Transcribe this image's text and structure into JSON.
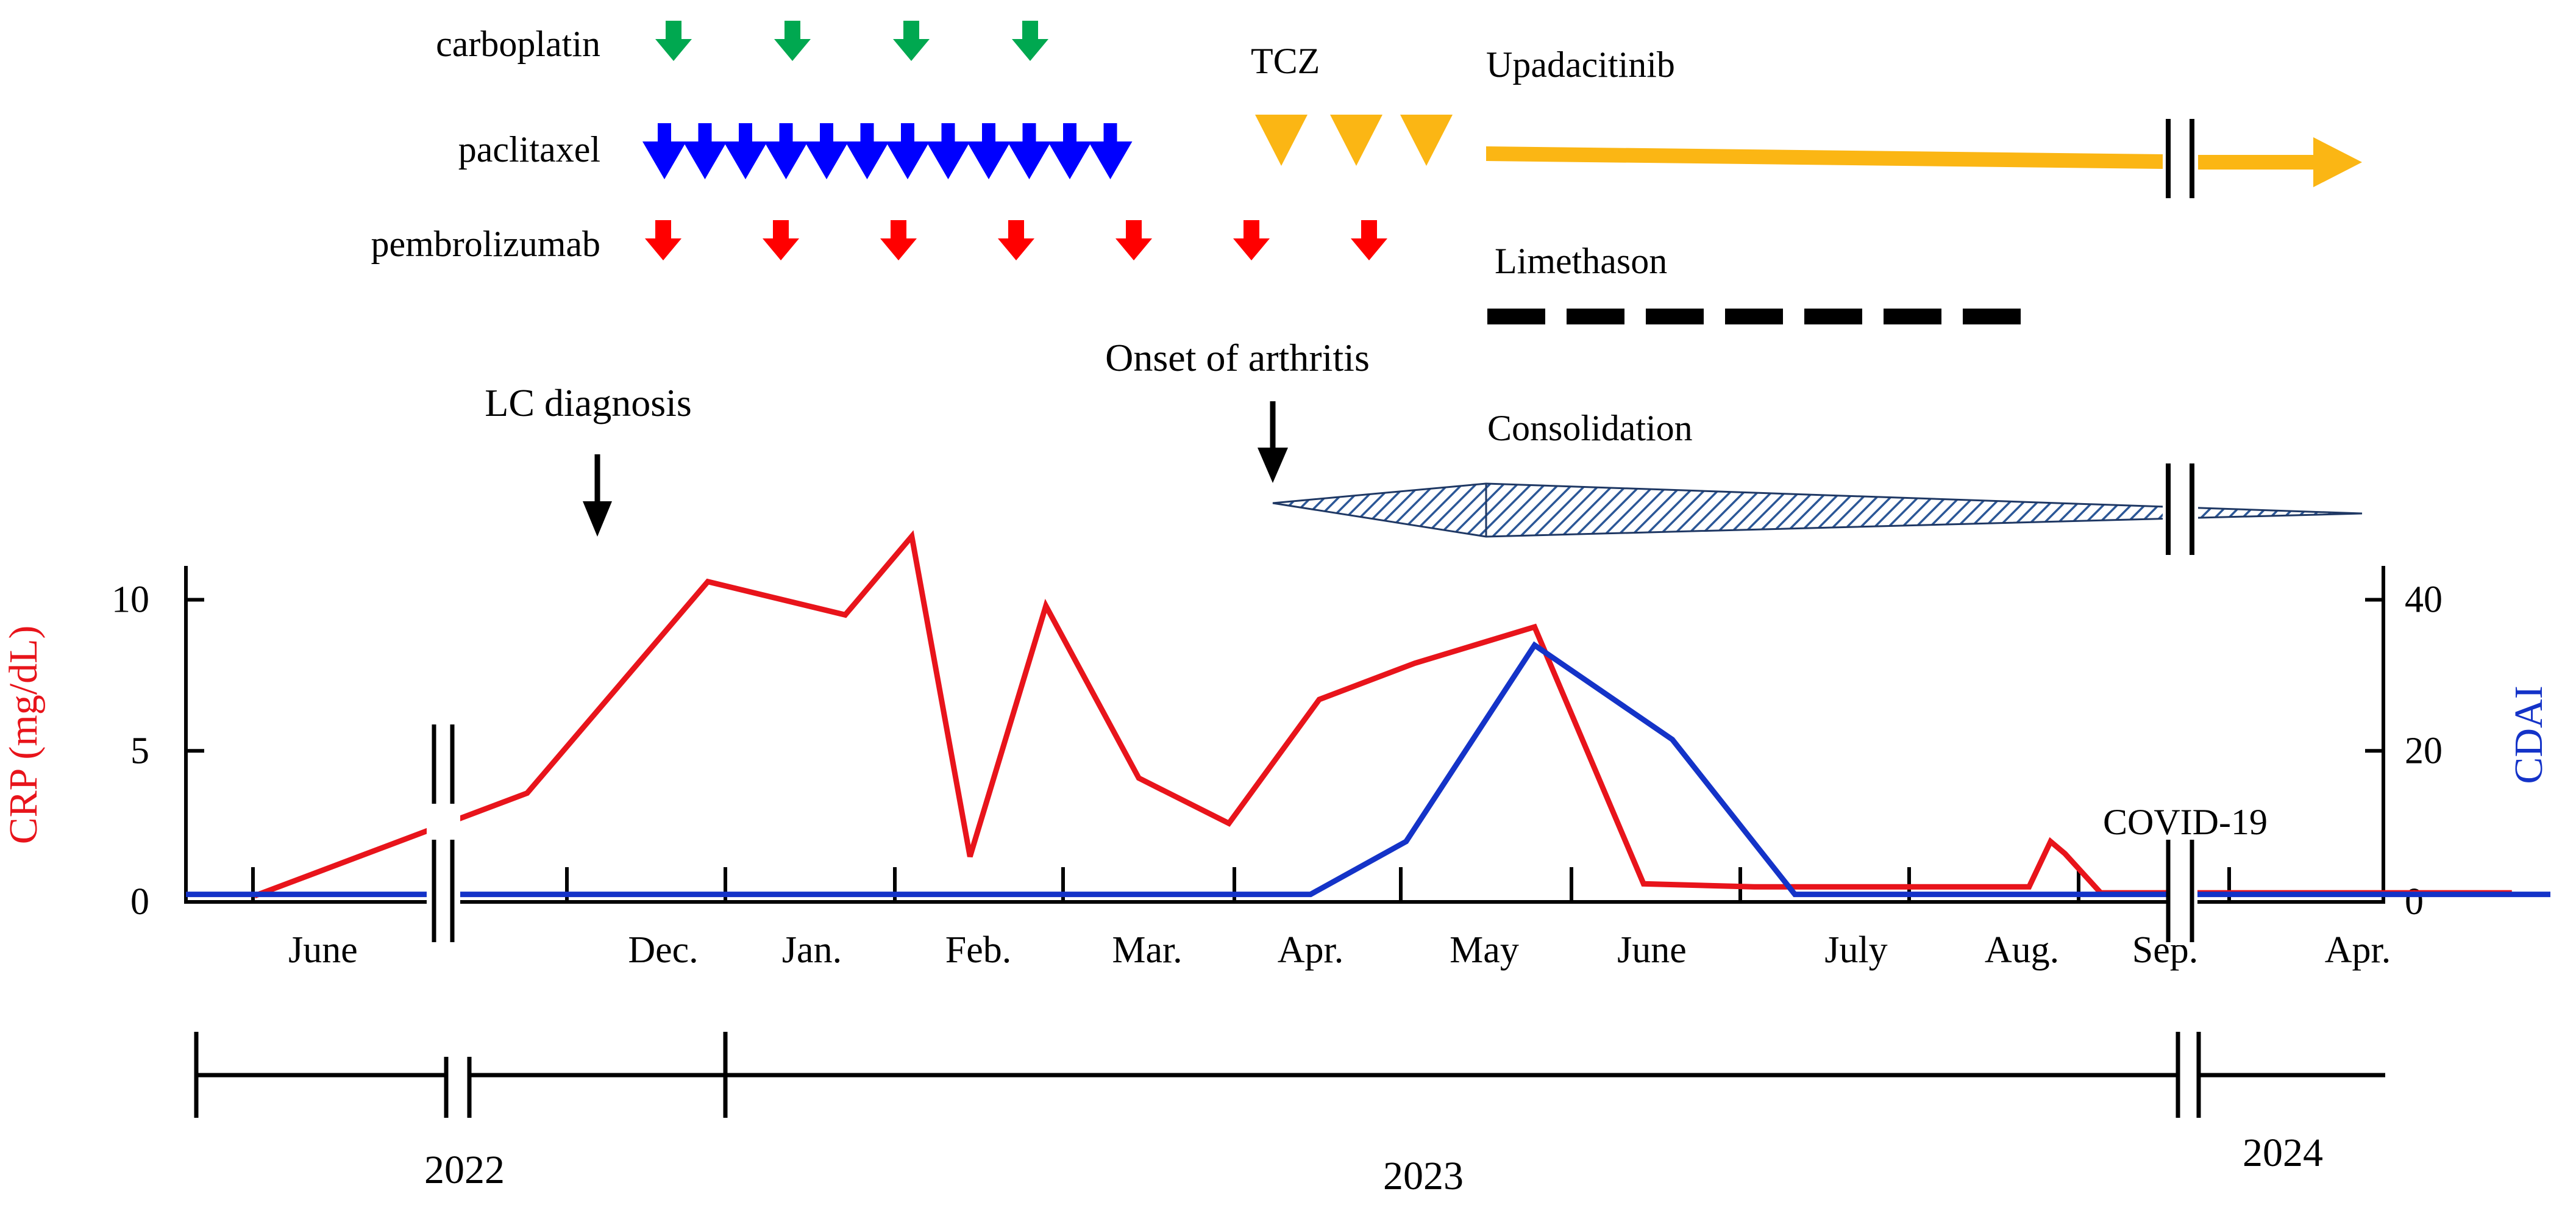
{
  "chart_data": {
    "type": "line",
    "timeline": {
      "x_tick_labels": [
        "June",
        "Dec.",
        "Jan.",
        "Feb.",
        "Mar.",
        "Apr.",
        "May",
        "June",
        "July",
        "Aug.",
        "Sep.",
        "Apr."
      ],
      "years": [
        "2022",
        "2023",
        "2024"
      ]
    },
    "left_axis": {
      "label": "CRP (mg/dL)",
      "ylim": [
        0,
        11
      ],
      "ticks": [
        "0",
        "5",
        "10"
      ],
      "tick_values": [
        0,
        5,
        10
      ]
    },
    "right_axis": {
      "label": "CDAI",
      "ylim": [
        0,
        44
      ],
      "ticks": [
        "0",
        "20",
        "40"
      ],
      "tick_values": [
        0,
        20,
        40
      ]
    },
    "series": [
      {
        "name": "CRP",
        "axis": "left",
        "color": "#e8141b",
        "x": [
          0.5,
          1.6,
          2.3,
          3.2,
          3.6,
          3.95,
          4.4,
          4.95,
          5.5,
          6.05,
          6.6,
          7.3,
          7.95,
          8.5,
          9.1,
          9.6,
          10.05,
          10.2,
          10.3,
          10.55,
          11.1,
          11.8
        ],
        "values": [
          0.2,
          3.6,
          10.6,
          9.5,
          12.1,
          1.5,
          9.8,
          4.1,
          2.6,
          6.7,
          7.9,
          9.1,
          0.6,
          0.5,
          0.5,
          0.5,
          0.5,
          2.0,
          1.6,
          0.3,
          0.3,
          0.3
        ]
      },
      {
        "name": "CDAI",
        "axis": "right",
        "color": "#1433c8",
        "x": [
          0.0,
          1.6,
          2.0,
          3.0,
          4.0,
          5.0,
          6.0,
          6.55,
          7.3,
          8.1,
          8.7,
          9.5,
          10.5,
          11.0,
          11.5,
          12.0
        ],
        "values": [
          1.0,
          1.0,
          1.0,
          1.0,
          1.0,
          1.0,
          1.0,
          8.0,
          34.0,
          21.5,
          1.0,
          1.0,
          1.0,
          1.0,
          1.0,
          1.0
        ]
      }
    ],
    "annotations": [
      "LC diagnosis",
      "Onset of arthritis",
      "COVID-19"
    ],
    "treatments": [
      {
        "name": "carboplatin",
        "color": "#00a850",
        "doses": 4
      },
      {
        "name": "paclitaxel",
        "color": "#0000ff",
        "doses": 12
      },
      {
        "name": "pembrolizumab",
        "color": "#ff0000",
        "doses": 7
      },
      {
        "name": "TCZ",
        "color": "#fbb614",
        "doses": 3
      },
      {
        "name": "Upadacitinib",
        "color": "#fbb614"
      },
      {
        "name": "Limethason",
        "color": "#000000"
      },
      {
        "name": "Consolidation",
        "color": "#1f4e79"
      }
    ]
  }
}
